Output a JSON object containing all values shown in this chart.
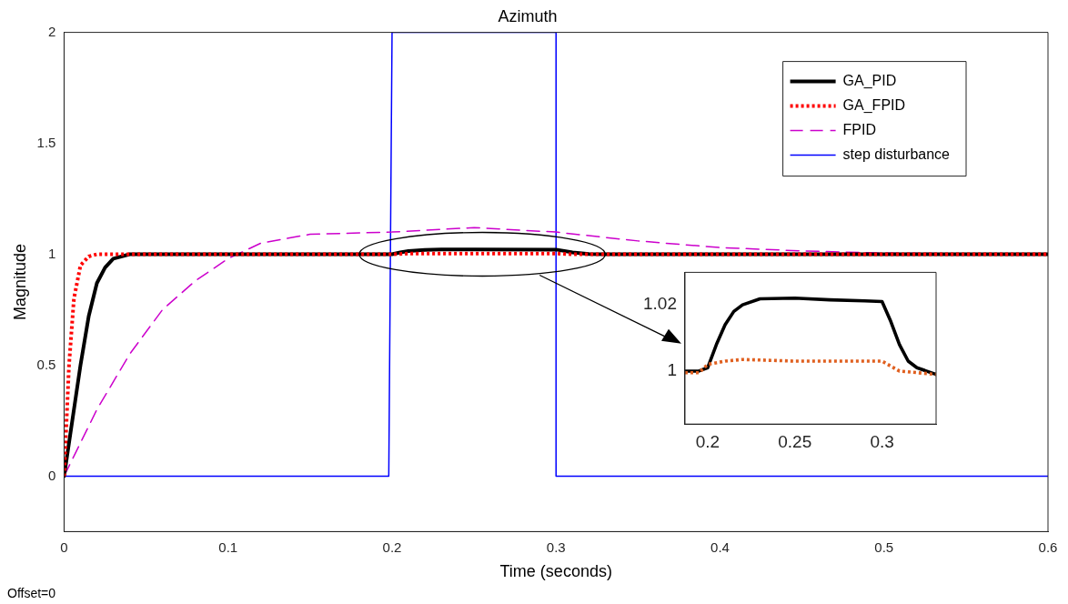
{
  "chart_data": [
    {
      "type": "line",
      "title": "Azimuth",
      "xlabel": "Time (seconds)",
      "ylabel": "Magnitude",
      "xlim": [
        0,
        0.6
      ],
      "xticks": [
        0,
        0.1,
        0.2,
        0.3,
        0.4,
        0.5,
        0.6
      ],
      "ylim": [
        -0.25,
        2
      ],
      "yticks": [
        0,
        0.5,
        1,
        1.5,
        2
      ],
      "legend": "top right",
      "annotations": [
        "Offset=0"
      ],
      "series": [
        {
          "name": "GA_PID",
          "color": "#000000",
          "line_style": "solid",
          "x": [
            0,
            0.005,
            0.01,
            0.015,
            0.02,
            0.025,
            0.03,
            0.04,
            0.2,
            0.205,
            0.21,
            0.22,
            0.23,
            0.25,
            0.3,
            0.305,
            0.31,
            0.32,
            0.33,
            0.6
          ],
          "values": [
            0,
            0.25,
            0.5,
            0.72,
            0.87,
            0.94,
            0.98,
            1,
            1,
            1.008,
            1.014,
            1.02,
            1.022,
            1.022,
            1.021,
            1.015,
            1.008,
            1.001,
            1,
            1
          ]
        },
        {
          "name": "GA_FPID",
          "color": "#ff0000",
          "line_style": "dotted",
          "x": [
            0,
            0.003,
            0.006,
            0.01,
            0.015,
            0.02,
            0.2,
            0.21,
            0.3,
            0.31,
            0.6
          ],
          "values": [
            0,
            0.5,
            0.8,
            0.95,
            0.99,
            1,
            1,
            1.003,
            1.003,
            1,
            1
          ]
        },
        {
          "name": "FPID",
          "color": "#cc00cc",
          "line_style": "dashed",
          "x": [
            0,
            0.02,
            0.04,
            0.06,
            0.08,
            0.1,
            0.12,
            0.15,
            0.2,
            0.25,
            0.3,
            0.35,
            0.4,
            0.45,
            0.5,
            0.6
          ],
          "values": [
            0,
            0.3,
            0.55,
            0.75,
            0.88,
            0.98,
            1.05,
            1.09,
            1.1,
            1.12,
            1.1,
            1.06,
            1.03,
            1.015,
            1.005,
            1
          ]
        },
        {
          "name": "step disturbance",
          "color": "#0000ff",
          "line_style": "solid",
          "x": [
            0,
            0.198,
            0.2,
            0.3,
            0.3,
            0.6
          ],
          "values": [
            0,
            0,
            2,
            2,
            0,
            0
          ]
        }
      ]
    },
    {
      "type": "line",
      "xlim": [
        0.187,
        0.331
      ],
      "xticks": [
        0.2,
        0.25,
        0.3
      ],
      "ylim": [
        0.984,
        1.0298
      ],
      "yticks": [
        1,
        1.02
      ],
      "series": [
        {
          "color": "#000000",
          "line_style": "solid",
          "x": [
            0.187,
            0.195,
            0.2,
            0.205,
            0.21,
            0.215,
            0.22,
            0.23,
            0.25,
            0.27,
            0.29,
            0.3,
            0.305,
            0.31,
            0.315,
            0.32,
            0.331
          ],
          "values": [
            1,
            1,
            1.001,
            1.008,
            1.014,
            1.018,
            1.02,
            1.0218,
            1.022,
            1.0215,
            1.0212,
            1.021,
            1.015,
            1.008,
            1.003,
            1.001,
            0.999
          ]
        },
        {
          "color": "#e06020",
          "line_style": "dotted",
          "x": [
            0.187,
            0.195,
            0.2,
            0.21,
            0.22,
            0.25,
            0.28,
            0.3,
            0.31,
            0.331
          ],
          "values": [
            0.9995,
            0.9995,
            1.002,
            1.003,
            1.0035,
            1.003,
            1.003,
            1.003,
            1,
            0.999
          ]
        }
      ]
    }
  ]
}
